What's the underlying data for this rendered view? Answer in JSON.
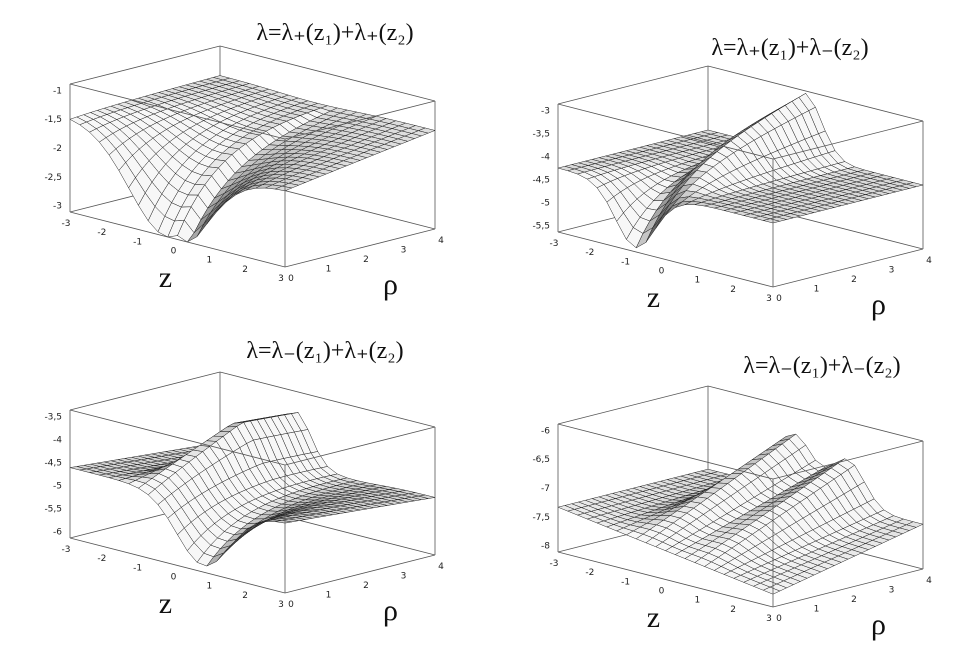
{
  "panels": [
    {
      "title": "λ=λ₊(z₁)+λ₊(z₂)",
      "vertical_ticks": [
        "-1",
        "-1,5",
        "-2",
        "-2,5",
        "-3"
      ],
      "z_label": "z",
      "z_ticks": [
        "-3",
        "-2",
        "-1",
        "0",
        "1",
        "2",
        "3"
      ],
      "rho_label": "ρ",
      "rho_ticks": [
        "0",
        "1",
        "2",
        "3",
        "4"
      ]
    },
    {
      "title": "λ=λ₊(z₁)+λ₋(z₂)",
      "vertical_ticks": [
        "-3",
        "-3,5",
        "-4",
        "-4,5",
        "-5",
        "-5,5"
      ],
      "z_label": "z",
      "z_ticks": [
        "-3",
        "-2",
        "-1",
        "0",
        "1",
        "2",
        "3"
      ],
      "rho_label": "ρ",
      "rho_ticks": [
        "0",
        "1",
        "2",
        "3",
        "4"
      ]
    },
    {
      "title": "λ=λ₋(z₁)+λ₊(z₂)",
      "vertical_ticks": [
        "-3,5",
        "-4",
        "-4,5",
        "-5",
        "-5,5",
        "-6"
      ],
      "z_label": "z",
      "z_ticks": [
        "-3",
        "-2",
        "-1",
        "0",
        "1",
        "2",
        "3"
      ],
      "rho_label": "ρ",
      "rho_ticks": [
        "0",
        "1",
        "2",
        "3",
        "4"
      ]
    },
    {
      "title": "λ=λ₋(z₁)+λ₋(z₂)",
      "vertical_ticks": [
        "-6",
        "-6,5",
        "-7",
        "-7,5",
        "-8"
      ],
      "z_label": "z",
      "z_ticks": [
        "-3",
        "-2",
        "-1",
        "0",
        "1",
        "2",
        "3"
      ],
      "rho_label": "ρ",
      "rho_ticks": [
        "0",
        "1",
        "2",
        "3",
        "4"
      ]
    }
  ]
}
